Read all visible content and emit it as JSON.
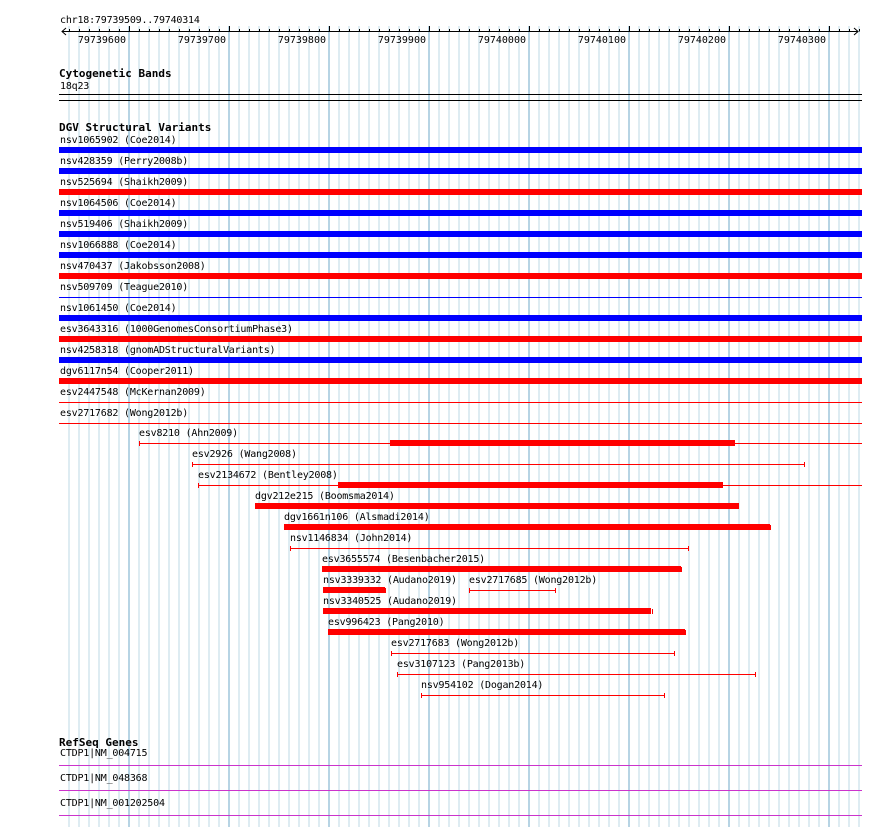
{
  "ruler": {
    "location": "chr18:79739509..79740314",
    "ticks": [
      "79739600",
      "79739700",
      "79739800",
      "79739900",
      "79740000",
      "79740100",
      "79740200",
      "79740300"
    ]
  },
  "cytoband": {
    "title": "Cytogenetic Bands",
    "band": "18q23"
  },
  "dgv": {
    "title": "DGV Structural Variants",
    "colors": {
      "gain": "#0000ff",
      "loss": "#ff0000"
    },
    "full_rows": [
      {
        "label": "nsv1065902 (Coe2014)",
        "color": "blue",
        "style": "thick"
      },
      {
        "label": "nsv428359 (Perry2008b)",
        "color": "blue",
        "style": "thick"
      },
      {
        "label": "nsv525694 (Shaikh2009)",
        "color": "red",
        "style": "thick"
      },
      {
        "label": "nsv1064506 (Coe2014)",
        "color": "blue",
        "style": "thick"
      },
      {
        "label": "nsv519406 (Shaikh2009)",
        "color": "blue",
        "style": "thick"
      },
      {
        "label": "nsv1066888 (Coe2014)",
        "color": "blue",
        "style": "thick"
      },
      {
        "label": "nsv470437 (Jakobsson2008)",
        "color": "red",
        "style": "thick"
      },
      {
        "label": "nsv509709 (Teague2010)",
        "color": "blue",
        "style": "thin"
      },
      {
        "label": "nsv1061450 (Coe2014)",
        "color": "blue",
        "style": "thick"
      },
      {
        "label": "esv3643316 (1000GenomesConsortiumPhase3)",
        "color": "red",
        "style": "thick"
      },
      {
        "label": "nsv4258318 (gnomADStructuralVariants)",
        "color": "blue",
        "style": "thick"
      },
      {
        "label": "dgv6117n54 (Cooper2011)",
        "color": "red",
        "style": "thick"
      },
      {
        "label": "esv2447548 (McKernan2009)",
        "color": "red",
        "style": "thin"
      },
      {
        "label": "esv2717682 (Wong2012b)",
        "color": "red",
        "style": "thin"
      }
    ],
    "variants": [
      {
        "label": "esv8210 (Ahn2009)",
        "start": 79739589,
        "end": 79740314,
        "thick_start": 79739841,
        "thick_end": 79740187
      },
      {
        "label": "esv2926 (Wang2008)",
        "start": 79739642,
        "end": 79740256
      },
      {
        "label": "esv2134672 (Bentley2008)",
        "start": 79739648,
        "end": 79740314,
        "thick_start": 79739789,
        "thick_end": 79740175
      },
      {
        "label": "dgv212e215 (Boomsma2014)",
        "start": 79739705,
        "end": 79740190,
        "thick_start": 79739705,
        "thick_end": 79740190
      },
      {
        "label": "dgv1661n106 (Alsmadi2014)",
        "start": 79739735,
        "end": 79740222,
        "thick_start": 79739735,
        "thick_end": 79740222
      },
      {
        "label": "nsv1146834 (John2014)",
        "start": 79739741,
        "end": 79740140
      },
      {
        "label": "esv3655574 (Besenbacher2015)",
        "start": 79739773,
        "end": 79740133,
        "thick_start": 79739773,
        "thick_end": 79740133
      },
      {
        "label": "nsv3339332 (Audano2019)",
        "start": 79739774,
        "end": 79739836,
        "thick_start": 79739774,
        "thick_end": 79739836
      },
      {
        "label": "esv2717685 (Wong2012b)",
        "start": 79739920,
        "end": 79740006
      },
      {
        "label": "nsv3340525 (Audano2019)",
        "start": 79739774,
        "end": 79740103,
        "thick_start": 79739774,
        "thick_end": 79740103
      },
      {
        "label": "esv996423 (Pang2010)",
        "start": 79739779,
        "end": 79740137,
        "thick_start": 79739779,
        "thick_end": 79740137
      },
      {
        "label": "esv2717683 (Wong2012b)",
        "start": 79739842,
        "end": 79740126
      },
      {
        "label": "esv3107123 (Pang2013b)",
        "start": 79739848,
        "end": 79740207
      },
      {
        "label": "nsv954102 (Dogan2014)",
        "start": 79739872,
        "end": 79740116
      }
    ]
  },
  "refseq": {
    "title": "RefSeq Genes",
    "color": "#cc33cc",
    "genes": [
      {
        "label": "CTDP1|NM_004715"
      },
      {
        "label": "CTDP1|NM_048368"
      },
      {
        "label": "CTDP1|NM_001202504"
      }
    ]
  }
}
